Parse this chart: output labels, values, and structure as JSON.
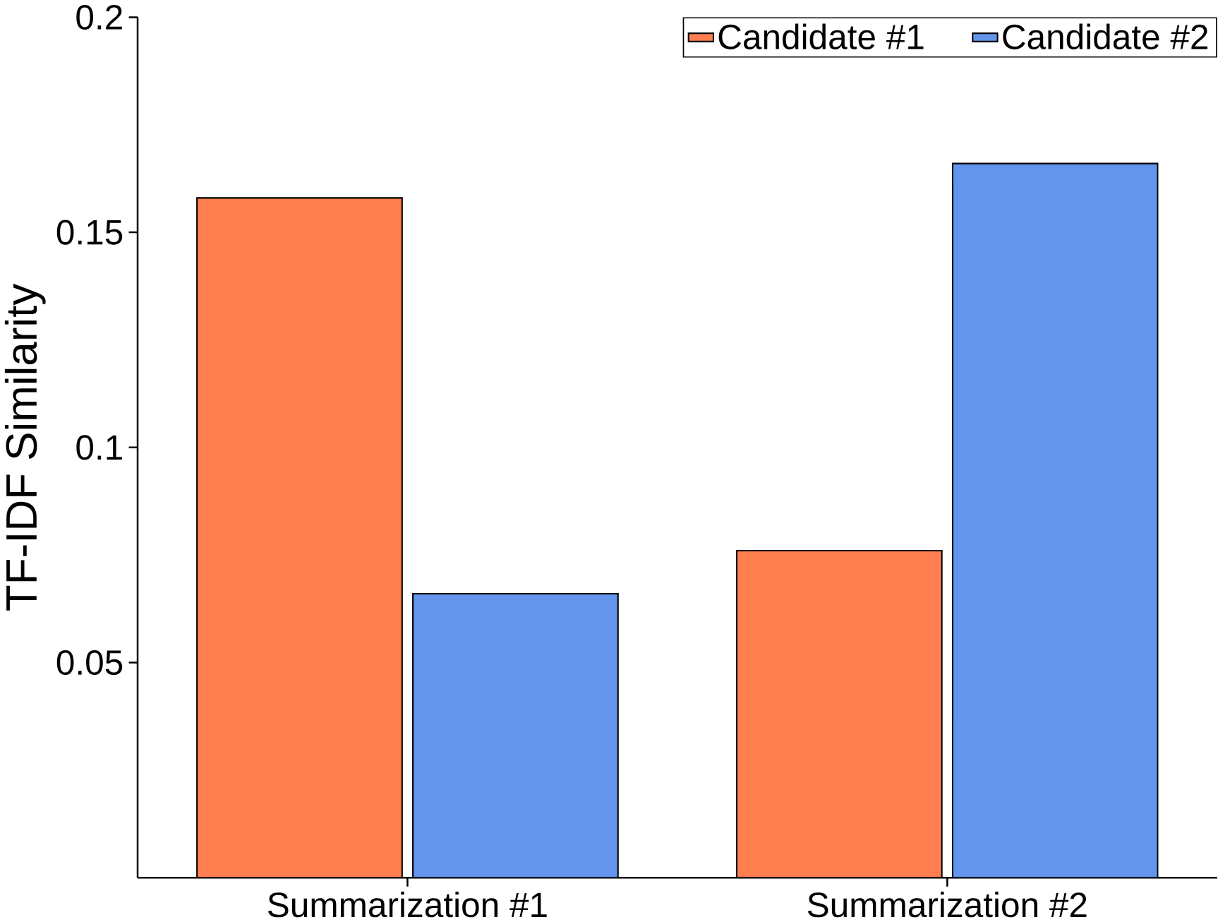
{
  "chart_data": {
    "type": "bar",
    "ylabel": "TF-IDF Similarity",
    "categories": [
      "Summarization #1",
      "Summarization #2"
    ],
    "series": [
      {
        "name": "Candidate #1",
        "color": "#ff7f50",
        "values": [
          0.158,
          0.076
        ]
      },
      {
        "name": "Candidate #2",
        "color": "#6495ed",
        "values": [
          0.066,
          0.166
        ]
      }
    ],
    "ylim": [
      0,
      0.2
    ],
    "yticks": [
      0.05,
      0.1,
      0.15,
      0.2
    ],
    "legend": "top right"
  }
}
